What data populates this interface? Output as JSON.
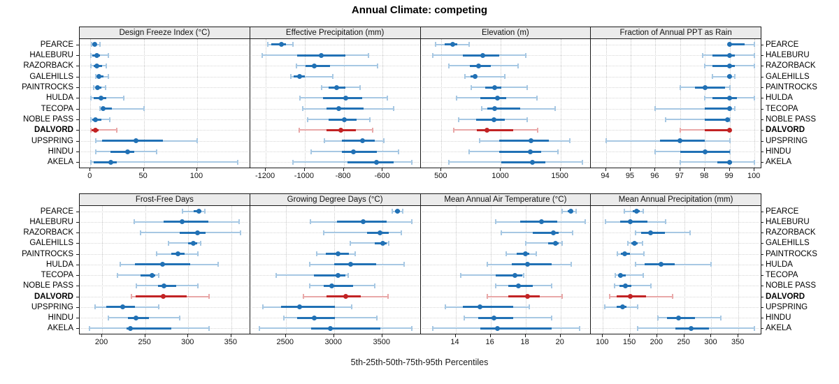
{
  "title": "Annual Climate: competing",
  "caption": "5th-25th-50th-75th-95th Percentiles",
  "stations": [
    "PEARCE",
    "HALEBURU",
    "RAZORBACK",
    "GALEHILLS",
    "PAINTROCKS",
    "HULDA",
    "TECOPA",
    "NOBLE PASS",
    "DALVORD",
    "UPSPRING",
    "HINDU",
    "AKELA"
  ],
  "highlight_station": "DALVORD",
  "colors": {
    "series": "#2171B5",
    "series_light": "#A7C8E3",
    "highlight": "#C22324",
    "highlight_light": "#E9A8A8",
    "strip_bg": "#EBEBEB",
    "panel_border": "#1A1A1A",
    "grid": "#C9C9C9",
    "row_line": "#D6D6D6"
  },
  "chart_data": {
    "type": "dot-interval-trellis",
    "layout": {
      "rows": 2,
      "cols": 4,
      "grid": "dotted",
      "legend": "none"
    },
    "percentiles": [
      5,
      25,
      50,
      75,
      95
    ],
    "panels": [
      {
        "title": "Design Freeze Index (°C)",
        "axis": {
          "min": -10,
          "max": 149,
          "ticks": [
            0,
            50,
            100
          ]
        },
        "values": [
          [
            1,
            2,
            4,
            6,
            9
          ],
          [
            0.5,
            2,
            6,
            9,
            17
          ],
          [
            0.5,
            3,
            6,
            11,
            15
          ],
          [
            5,
            6,
            8,
            12,
            17
          ],
          [
            3,
            5,
            7,
            10,
            14
          ],
          [
            0.5,
            3,
            10,
            15,
            31
          ],
          [
            9,
            10,
            12,
            20,
            50
          ],
          [
            0.5,
            2,
            5,
            10,
            18
          ],
          [
            0.3,
            1,
            5,
            8,
            25
          ],
          [
            5,
            11,
            43,
            68,
            100
          ],
          [
            5,
            19,
            35,
            41,
            62
          ],
          [
            0.5,
            3,
            19,
            25,
            138
          ]
        ]
      },
      {
        "title": "Effective Precipitation (mm)",
        "axis": {
          "min": -1280,
          "max": -410,
          "ticks": [
            -1200,
            -1000,
            -800,
            -600
          ]
        },
        "values": [
          [
            -1190,
            -1170,
            -1120,
            -1095,
            -1060
          ],
          [
            -1218,
            -1040,
            -915,
            -790,
            -672
          ],
          [
            -1043,
            -996,
            -950,
            -871,
            -628
          ],
          [
            -1071,
            -1057,
            -1028,
            -1000,
            -857
          ],
          [
            -914,
            -878,
            -836,
            -793,
            -718
          ],
          [
            -1025,
            -907,
            -789,
            -704,
            -575
          ],
          [
            -1010,
            -890,
            -825,
            -700,
            -545
          ],
          [
            -985,
            -878,
            -796,
            -735,
            -668
          ],
          [
            -1029,
            -889,
            -814,
            -739,
            -653
          ],
          [
            -900,
            -810,
            -705,
            -640,
            -596
          ],
          [
            -968,
            -811,
            -750,
            -632,
            -521
          ],
          [
            -1061,
            -782,
            -632,
            -543,
            -450
          ]
        ]
      },
      {
        "title": "Elevation (m)",
        "axis": {
          "min": 325,
          "max": 1750,
          "ticks": [
            500,
            1000,
            1500
          ]
        },
        "values": [
          [
            450,
            530,
            595,
            635,
            735
          ],
          [
            430,
            680,
            845,
            985,
            1210
          ],
          [
            565,
            740,
            815,
            915,
            1145
          ],
          [
            695,
            745,
            780,
            800,
            1030
          ],
          [
            750,
            870,
            945,
            1005,
            1220
          ],
          [
            625,
            825,
            970,
            1045,
            1305
          ],
          [
            840,
            885,
            945,
            1160,
            1455
          ],
          [
            645,
            790,
            940,
            1030,
            1220
          ],
          [
            605,
            798,
            880,
            1102,
            1307
          ],
          [
            820,
            985,
            1250,
            1405,
            1580
          ],
          [
            735,
            985,
            1245,
            1340,
            1480
          ],
          [
            565,
            1005,
            1265,
            1375,
            1685
          ]
        ]
      },
      {
        "title": "Fraction of Annual PPT as Rain",
        "axis": {
          "min": 93.4,
          "max": 100.25,
          "ticks": [
            94,
            95,
            96,
            97,
            98,
            99,
            100
          ]
        },
        "values": [
          [
            99,
            99,
            99,
            99.6,
            100
          ],
          [
            97.9,
            98.3,
            99,
            99.2,
            100
          ],
          [
            98,
            98.3,
            99,
            99.2,
            100
          ],
          [
            98.3,
            98.9,
            99,
            99,
            99.2
          ],
          [
            97,
            97.6,
            98,
            98.8,
            99
          ],
          [
            98,
            98.3,
            99,
            99.3,
            100
          ],
          [
            96,
            98,
            99,
            99,
            99.2
          ],
          [
            96.4,
            98,
            98.9,
            99,
            99
          ],
          [
            97,
            98,
            99,
            99,
            99
          ],
          [
            94,
            96.2,
            97,
            98,
            99
          ],
          [
            96,
            97,
            98,
            99,
            99
          ],
          [
            97,
            98.5,
            99,
            99.1,
            100
          ]
        ]
      },
      {
        "title": "Frost-Free Days",
        "axis": {
          "min": 174,
          "max": 371,
          "ticks": [
            200,
            250,
            300,
            350
          ]
        },
        "values": [
          [
            293,
            306,
            312,
            315,
            319
          ],
          [
            237,
            271,
            293,
            323,
            359
          ],
          [
            245,
            290,
            311,
            320,
            361
          ],
          [
            277,
            300,
            306,
            310,
            314
          ],
          [
            263,
            280,
            288,
            296,
            311
          ],
          [
            221,
            238,
            270,
            302,
            335
          ],
          [
            218,
            245,
            258,
            262,
            266
          ],
          [
            240,
            265,
            272,
            286,
            311
          ],
          [
            234,
            239,
            271,
            298,
            324
          ],
          [
            192,
            205,
            224,
            238,
            266
          ],
          [
            207,
            230,
            239,
            254,
            290
          ],
          [
            185,
            228,
            233,
            280,
            324
          ]
        ]
      },
      {
        "title": "Growing Degree Days (°C)",
        "axis": {
          "min": 2130,
          "max": 3890,
          "ticks": [
            2500,
            3000,
            3500
          ]
        },
        "values": [
          [
            3600,
            3635,
            3655,
            3680,
            3710
          ],
          [
            2755,
            3030,
            3300,
            3545,
            3805
          ],
          [
            2895,
            3345,
            3480,
            3565,
            3700
          ],
          [
            3170,
            3420,
            3505,
            3545,
            3570
          ],
          [
            2820,
            2915,
            3045,
            3155,
            3220
          ],
          [
            2745,
            3000,
            3175,
            3435,
            3730
          ],
          [
            2400,
            2795,
            3040,
            3120,
            3150
          ],
          [
            2745,
            2890,
            2980,
            3200,
            3420
          ],
          [
            2680,
            2920,
            3120,
            3280,
            3560
          ],
          [
            2260,
            2450,
            2645,
            3010,
            3185
          ],
          [
            2480,
            2615,
            2795,
            3010,
            3445
          ],
          [
            2225,
            2760,
            2960,
            3480,
            3805
          ]
        ]
      },
      {
        "title": "Mean Annual Air Temperature (°C)",
        "axis": {
          "min": 12,
          "max": 21.7,
          "ticks": [
            14,
            16,
            18,
            20
          ]
        },
        "values": [
          [
            20.1,
            20.4,
            20.6,
            20.7,
            20.9
          ],
          [
            16.3,
            17.7,
            18.9,
            19.8,
            21.4
          ],
          [
            16.6,
            18.4,
            19.6,
            19.9,
            20.7
          ],
          [
            18.0,
            19.3,
            19.7,
            19.9,
            20.1
          ],
          [
            16.9,
            17.5,
            18.0,
            18.2,
            18.6
          ],
          [
            15.8,
            17.2,
            18.1,
            19.5,
            20.6
          ],
          [
            14.3,
            16.3,
            17.4,
            17.8,
            17.9
          ],
          [
            16.3,
            17.0,
            17.6,
            18.4,
            19.5
          ],
          [
            15.8,
            17.0,
            18.1,
            18.8,
            20.1
          ],
          [
            13.4,
            14.4,
            15.4,
            17.3,
            18.2
          ],
          [
            14.5,
            15.3,
            16.2,
            17.3,
            19.5
          ],
          [
            12.7,
            15.4,
            16.4,
            19.5,
            21.1
          ]
        ]
      },
      {
        "title": "Mean Annual Precipitation (mm)",
        "axis": {
          "min": 78,
          "max": 391,
          "ticks": [
            100,
            150,
            200,
            250,
            300,
            350
          ]
        },
        "values": [
          [
            140,
            155,
            162,
            168,
            174
          ],
          [
            105,
            132,
            150,
            182,
            216
          ],
          [
            160,
            170,
            188,
            214,
            261
          ],
          [
            146,
            152,
            158,
            164,
            173
          ],
          [
            127,
            133,
            140,
            150,
            176
          ],
          [
            160,
            177,
            207,
            233,
            299
          ],
          [
            123,
            128,
            133,
            142,
            174
          ],
          [
            122,
            130,
            142,
            152,
            188
          ],
          [
            112,
            126,
            150,
            180,
            229
          ],
          [
            104,
            125,
            136,
            144,
            164
          ],
          [
            201,
            218,
            239,
            270,
            318
          ],
          [
            164,
            234,
            263,
            295,
            380
          ]
        ]
      }
    ]
  }
}
